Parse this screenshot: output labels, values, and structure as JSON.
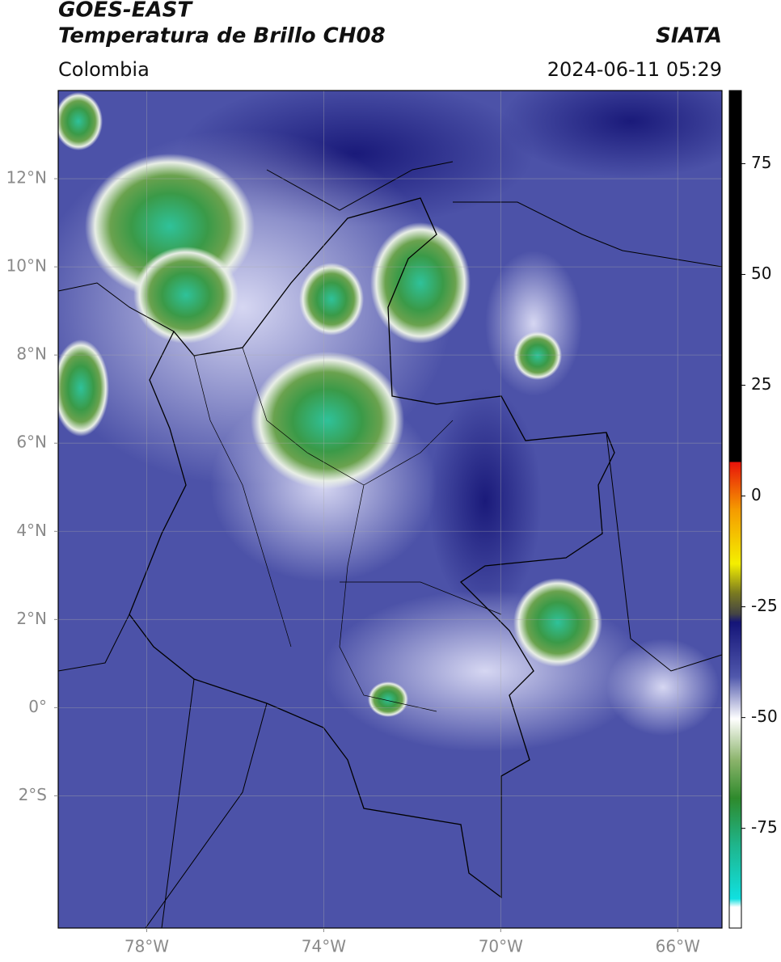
{
  "chart_data": {
    "type": "map",
    "title": "GOES-EAST",
    "subtitle": "Temperatura de Brillo CH08",
    "source": "SIATA",
    "region": "Colombia",
    "datetime": "2024-06-11 05:29",
    "xlim": [
      -80,
      -65
    ],
    "ylim": [
      -5,
      14
    ],
    "xticks": [
      {
        "value": -78,
        "label": "78°W"
      },
      {
        "value": -74,
        "label": "74°W"
      },
      {
        "value": -70,
        "label": "70°W"
      },
      {
        "value": -66,
        "label": "66°W"
      }
    ],
    "yticks": [
      {
        "value": 12,
        "label": "12°N"
      },
      {
        "value": 10,
        "label": "10°N"
      },
      {
        "value": 8,
        "label": "8°N"
      },
      {
        "value": 6,
        "label": "6°N"
      },
      {
        "value": 4,
        "label": "4°N"
      },
      {
        "value": 2,
        "label": "2°N"
      },
      {
        "value": 0,
        "label": "0°"
      },
      {
        "value": -2,
        "label": "2°S"
      }
    ],
    "grid": true,
    "colorbar_lim": [
      -97.5,
      91.5
    ],
    "colorbar_ticks": [
      75,
      50,
      25,
      0,
      -25,
      -50,
      -75
    ]
  }
}
